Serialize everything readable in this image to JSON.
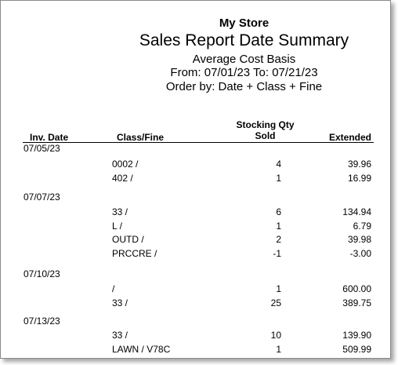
{
  "report": {
    "store": "My Store",
    "title": "Sales Report Date Summary",
    "basis": "Average Cost Basis",
    "date_range": "From: 07/01/23  To: 07/21/23",
    "order": "Order by: Date + Class + Fine"
  },
  "columns": {
    "inv_date": "Inv. Date",
    "class_fine": "Class/Fine",
    "qty_line1": "Stocking Qty",
    "qty_line2": "Sold",
    "extended": "Extended"
  },
  "groups": [
    {
      "date": "07/05/23",
      "rows": [
        {
          "class": "0002 /",
          "qty": "4",
          "ext": "39.96"
        },
        {
          "class": "402 /",
          "qty": "1",
          "ext": "16.99"
        }
      ]
    },
    {
      "date": "07/07/23",
      "rows": [
        {
          "class": "33 /",
          "qty": "6",
          "ext": "134.94"
        },
        {
          "class": "L /",
          "qty": "1",
          "ext": "6.79"
        },
        {
          "class": "OUTD /",
          "qty": "2",
          "ext": "39.98"
        },
        {
          "class": "PRCCRE /",
          "qty": "-1",
          "ext": "-3.00"
        }
      ]
    },
    {
      "date": "07/10/23",
      "rows": [
        {
          "class": " /",
          "qty": "1",
          "ext": "600.00"
        },
        {
          "class": "33 /",
          "qty": "25",
          "ext": "389.75"
        }
      ]
    },
    {
      "date": "07/13/23",
      "rows": [
        {
          "class": "33 /",
          "qty": "10",
          "ext": "139.90"
        },
        {
          "class": "LAWN / V78C",
          "qty": "1",
          "ext": "509.99"
        }
      ]
    }
  ]
}
